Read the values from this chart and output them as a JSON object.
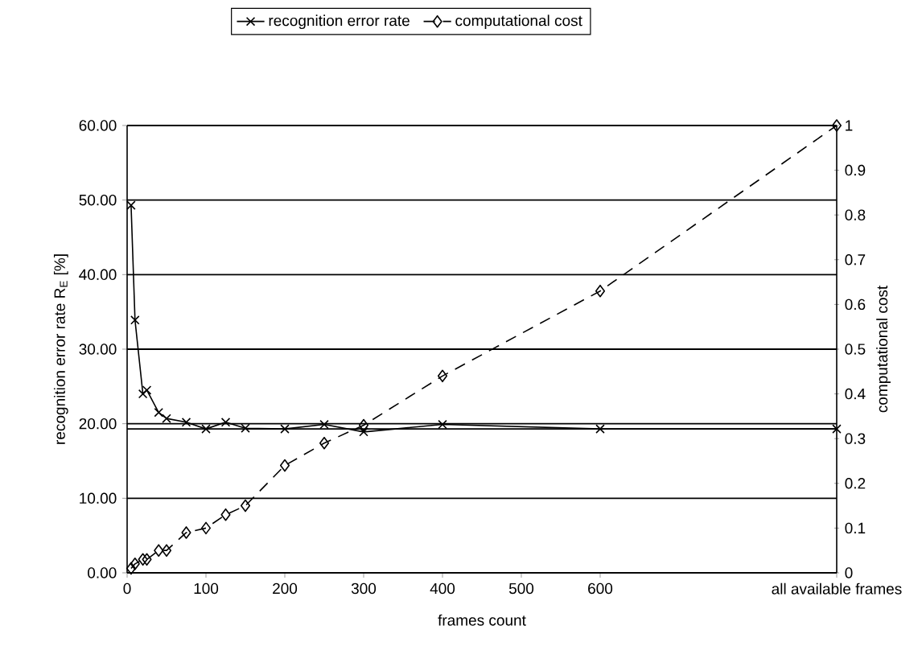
{
  "chart_data": {
    "type": "line",
    "xlabel": "frames count",
    "ylabel": "recognition error rate R$_{E}$ [%]",
    "y2label": "computational cost",
    "xlim": [
      0,
      900
    ],
    "xticks": [
      0,
      100,
      200,
      300,
      400,
      500,
      600,
      {
        "value": 900,
        "label": "all available frames"
      }
    ],
    "ylim": [
      0,
      60
    ],
    "yticks": [
      {
        "value": 0,
        "label": "0.00"
      },
      {
        "value": 10,
        "label": "10.00"
      },
      {
        "value": 20,
        "label": "20.00"
      },
      {
        "value": 30,
        "label": "30.00"
      },
      {
        "value": 40,
        "label": "40.00"
      },
      {
        "value": 50,
        "label": "50.00"
      },
      {
        "value": 60,
        "label": "60.00"
      }
    ],
    "y2lim": [
      0,
      1
    ],
    "y2ticks": [
      0,
      0.1,
      0.2,
      0.3,
      0.4,
      0.5,
      0.6,
      0.7,
      0.8,
      0.9,
      1
    ],
    "grid": "y",
    "legend": "top",
    "ref_lines": [
      {
        "axis": "y",
        "value": 19.3,
        "label": null
      }
    ],
    "series": [
      {
        "name": "recognition error rate",
        "color": "#000000",
        "marker": "cross",
        "line_style": "solid",
        "x": [
          5,
          10,
          20,
          25,
          40,
          50,
          75,
          100,
          125,
          150,
          200,
          250,
          300,
          400,
          600,
          900
        ],
        "values": [
          49.3,
          33.9,
          24.0,
          24.5,
          21.5,
          20.7,
          20.2,
          19.3,
          20.2,
          19.4,
          19.3,
          19.9,
          18.9,
          19.9,
          19.3,
          19.3
        ]
      },
      {
        "name": "computational cost",
        "color": "#000000",
        "marker": "diamond",
        "line_style": "dashed",
        "axis": "y2",
        "x": [
          5,
          10,
          20,
          25,
          40,
          50,
          75,
          100,
          125,
          150,
          200,
          250,
          300,
          400,
          600,
          900
        ],
        "values": [
          0.01,
          0.02,
          0.03,
          0.03,
          0.05,
          0.05,
          0.09,
          0.1,
          0.13,
          0.15,
          0.24,
          0.29,
          0.33,
          0.44,
          0.63,
          1.0
        ]
      }
    ]
  }
}
